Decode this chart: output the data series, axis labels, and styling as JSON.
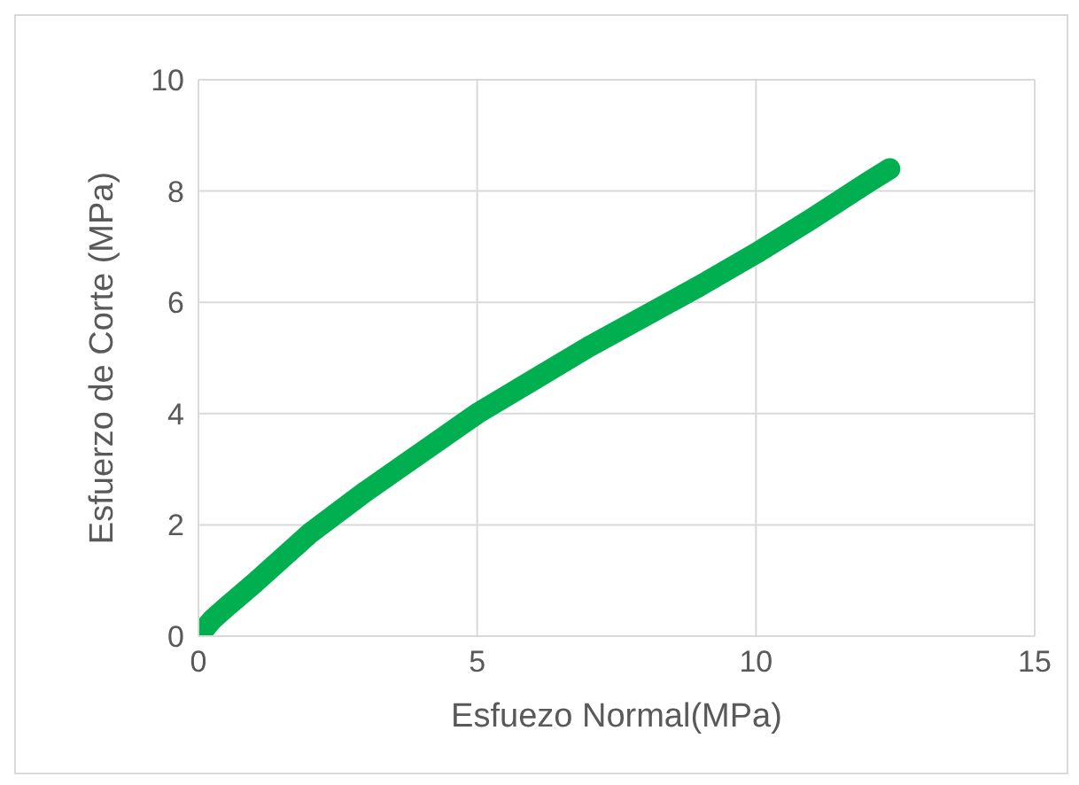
{
  "chart_data": {
    "type": "line",
    "xlabel": "Esfuezo Normal(MPa)",
    "ylabel": "Esfuerzo de Corte  (MPa)",
    "x": [
      0,
      0.25,
      0.5,
      1,
      1.5,
      2,
      3,
      4,
      5,
      6,
      7,
      8,
      9,
      10,
      11,
      12,
      12.4
    ],
    "series": [
      {
        "color": "#00b050",
        "values": [
          0,
          0.3,
          0.52,
          0.95,
          1.4,
          1.85,
          2.6,
          3.3,
          4.0,
          4.6,
          5.2,
          5.75,
          6.3,
          6.88,
          7.5,
          8.15,
          8.4
        ]
      }
    ],
    "xlim": [
      0,
      15
    ],
    "xticks": [
      0,
      5,
      10,
      15
    ],
    "ylim": [
      0,
      10
    ],
    "yticks": [
      0,
      2,
      4,
      6,
      8,
      10
    ],
    "grid": true
  }
}
